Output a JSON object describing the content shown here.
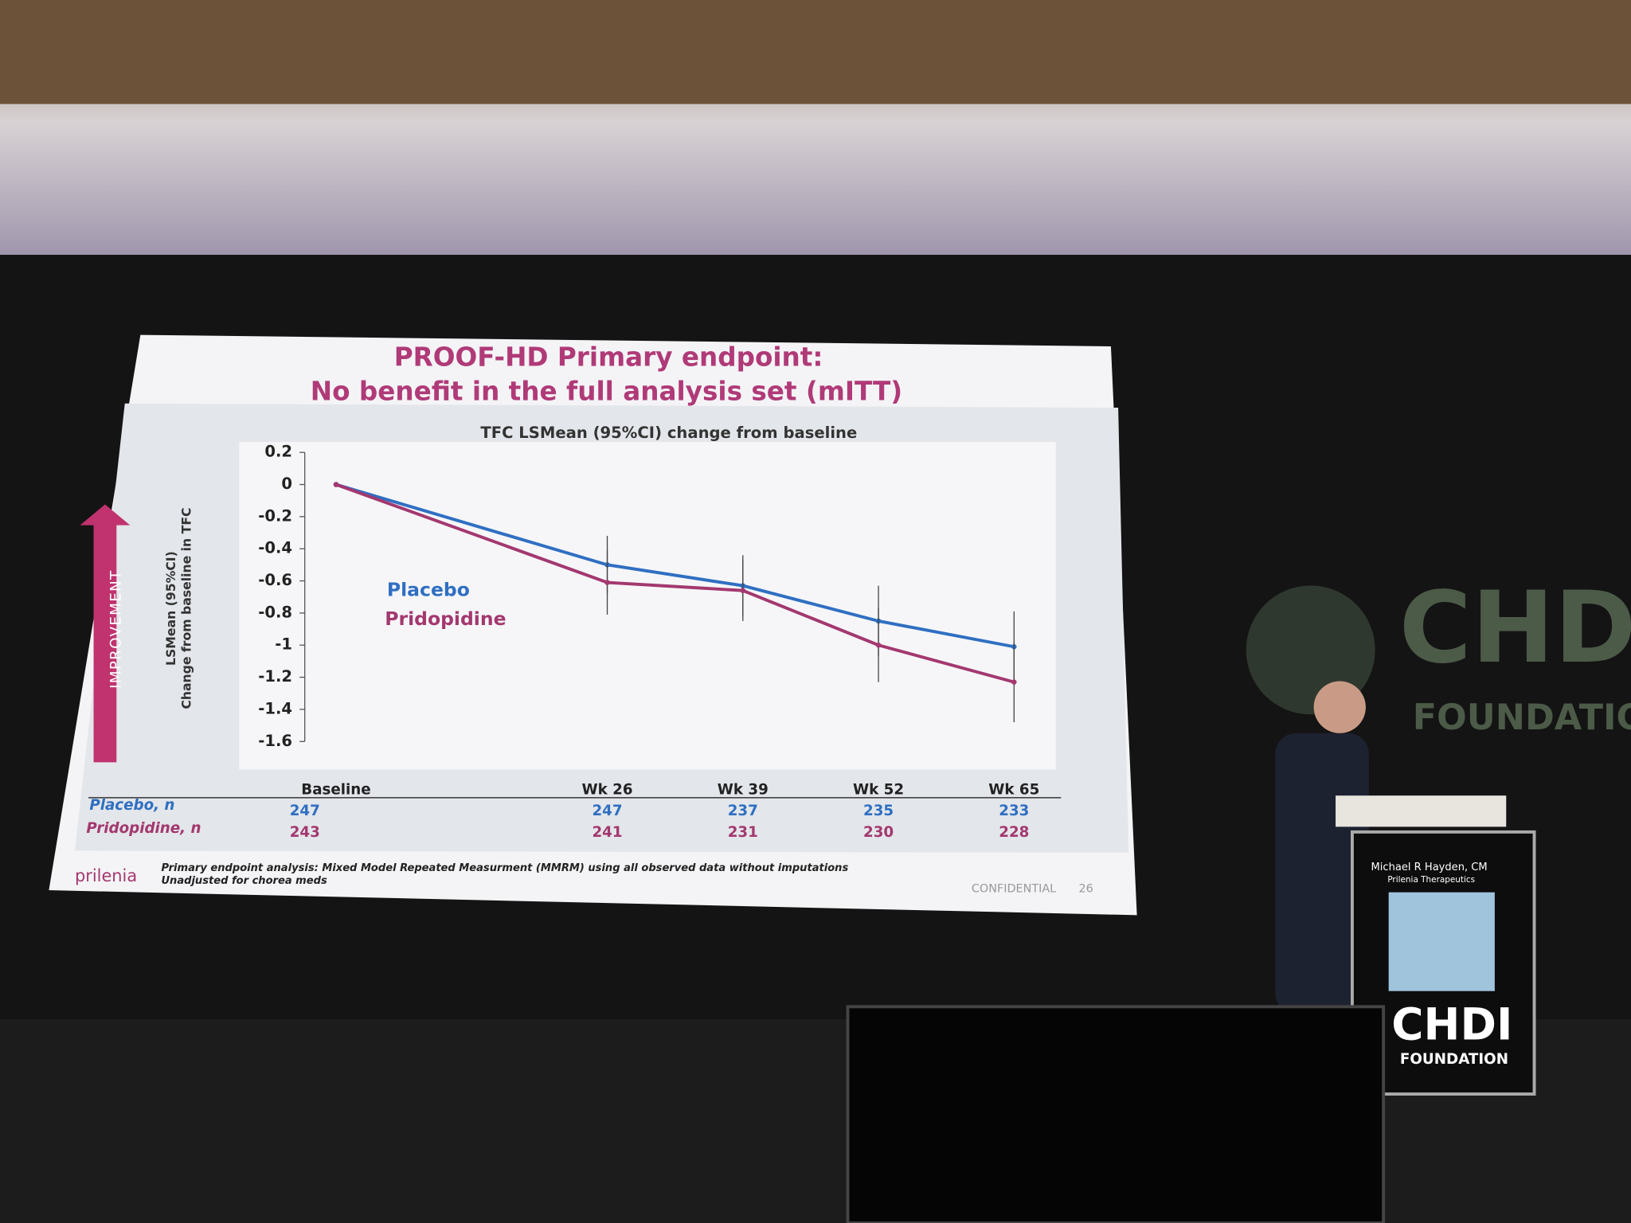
{
  "chart_data": {
    "type": "line",
    "title": [
      "PROOF-HD Primary endpoint:",
      "No benefit in the full analysis set (mITT)"
    ],
    "subtitle": "TFC LSMean (95%CI) change from baseline",
    "ylabel": [
      "LSMean (95%CI)",
      "Change from baseline in TFC"
    ],
    "annotation": "IMPROVEMENT",
    "x": [
      0,
      26,
      39,
      52,
      65
    ],
    "xlim": [
      -3,
      69
    ],
    "xticks": [
      {
        "value": 0,
        "label": "Baseline"
      },
      {
        "value": 26,
        "label": "Wk 26"
      },
      {
        "value": 39,
        "label": "Wk 39"
      },
      {
        "value": 52,
        "label": "Wk 52"
      },
      {
        "value": 65,
        "label": "Wk 65"
      }
    ],
    "ylim": [
      -1.6,
      0.2
    ],
    "yticks": [
      0.2,
      0,
      -0.2,
      -0.4,
      -0.6,
      -0.8,
      -1,
      -1.2,
      -1.4,
      -1.6
    ],
    "series": [
      {
        "name": "Placebo",
        "color": "#2f6fc2",
        "values": [
          0,
          -0.5,
          -0.63,
          -0.85,
          -1.01
        ],
        "errors": [
          0,
          0.18,
          0.19,
          0.22,
          0.22
        ],
        "n_label": "Placebo, n",
        "n": [
          247,
          247,
          237,
          235,
          233
        ]
      },
      {
        "name": "Pridopidine",
        "color": "#a3386f",
        "values": [
          0,
          -0.61,
          -0.66,
          -1.0,
          -1.23
        ],
        "errors": [
          0,
          0.2,
          0.19,
          0.23,
          0.25
        ],
        "n_label": "Pridopidine, n",
        "n": [
          243,
          241,
          231,
          230,
          228
        ]
      }
    ],
    "footnotes": [
      "Primary endpoint analysis: Mixed Model Repeated Measurment (MMRM) using all observed data without imputations",
      "Unadjusted for chorea meds"
    ],
    "logo": "prilenia",
    "confidential": "CONFIDENTIAL",
    "page_number": "26"
  },
  "scene": {
    "backdrop": [
      "CHDI",
      "FOUNDATION"
    ],
    "speaker_name": "Michael R Hayden, CM",
    "speaker_org": "Prilenia Therapeutics",
    "podium": [
      "CHDI",
      "FOUNDATION"
    ]
  }
}
